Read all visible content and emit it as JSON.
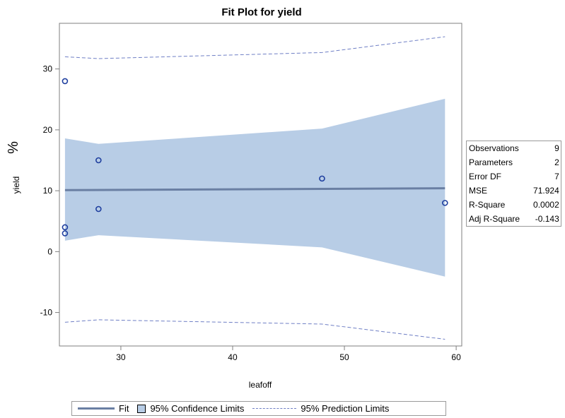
{
  "chart_data": {
    "type": "scatter",
    "title": "Fit Plot for yield",
    "xlabel": "leafoff",
    "ylabel": "yield",
    "ylabel_extra": "%",
    "xlim": [
      24.5,
      60.5
    ],
    "ylim": [
      -15.5,
      37.5
    ],
    "xticks": [
      30,
      40,
      50,
      60
    ],
    "yticks": [
      -10,
      0,
      10,
      20,
      30
    ],
    "points": [
      {
        "x": 25,
        "y": 28
      },
      {
        "x": 25,
        "y": 4
      },
      {
        "x": 25,
        "y": 3
      },
      {
        "x": 28,
        "y": 15
      },
      {
        "x": 28,
        "y": 7
      },
      {
        "x": 48,
        "y": 12
      },
      {
        "x": 59,
        "y": 8
      }
    ],
    "fit": {
      "x": [
        25,
        59
      ],
      "y": [
        10.1,
        10.4
      ]
    },
    "confidence_band": {
      "x": [
        25,
        28,
        48,
        59
      ],
      "upper": [
        18.6,
        17.7,
        20.2,
        25.1
      ],
      "lower": [
        1.8,
        2.7,
        0.7,
        -4.1
      ]
    },
    "prediction_band": {
      "x": [
        25,
        28,
        48,
        59
      ],
      "upper": [
        32.0,
        31.7,
        32.7,
        35.3
      ],
      "lower": [
        -11.6,
        -11.2,
        -11.9,
        -14.4
      ]
    },
    "colors": {
      "fit": "#6a7fa3",
      "confidence_fill": "#b8cde6",
      "prediction": "#6f7fc5",
      "points": "#1f3f9f",
      "frame": "#7f7f7f"
    }
  },
  "stats": [
    {
      "label": "Observations",
      "value": "9"
    },
    {
      "label": "Parameters",
      "value": "2"
    },
    {
      "label": "Error DF",
      "value": "7"
    },
    {
      "label": "MSE",
      "value": "71.924"
    },
    {
      "label": "R-Square",
      "value": "0.0002"
    },
    {
      "label": "Adj R-Square",
      "value": "-0.143"
    }
  ],
  "legend": {
    "fit": "Fit",
    "confidence": "95% Confidence Limits",
    "prediction": "95% Prediction Limits"
  }
}
